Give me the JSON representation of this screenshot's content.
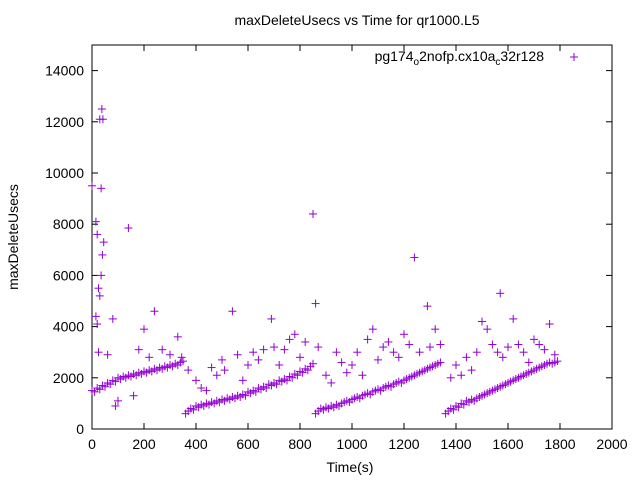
{
  "chart_data": {
    "type": "scatter",
    "title": "maxDeleteUsecs vs Time for qr1000.L5",
    "xlabel": "Time(s)",
    "ylabel": "maxDeleteUsecs",
    "xlim": [
      0,
      2000
    ],
    "ylim": [
      0,
      15000
    ],
    "x_ticks": [
      "0",
      "200",
      "400",
      "600",
      "800",
      "1000",
      "1200",
      "1400",
      "1600",
      "1800",
      "2000"
    ],
    "y_ticks": [
      "0",
      "2000",
      "4000",
      "6000",
      "8000",
      "10000",
      "12000",
      "14000"
    ],
    "legend": {
      "placement": "top-right",
      "label": "pg174_o2nofp.cx10a_c32r128"
    },
    "grid": false,
    "series": [
      {
        "name": "pg174_o2nofp.cx10a_c32r128",
        "color": "#9400d3",
        "marker": "plus",
        "points": [
          [
            0,
            1500
          ],
          [
            10,
            1450
          ],
          [
            20,
            1600
          ],
          [
            30,
            1550
          ],
          [
            40,
            1700
          ],
          [
            50,
            1650
          ],
          [
            60,
            1800
          ],
          [
            70,
            1750
          ],
          [
            80,
            1900
          ],
          [
            90,
            1850
          ],
          [
            100,
            2000
          ],
          [
            110,
            1950
          ],
          [
            120,
            2050
          ],
          [
            130,
            2000
          ],
          [
            140,
            2100
          ],
          [
            150,
            2050
          ],
          [
            160,
            2150
          ],
          [
            170,
            2100
          ],
          [
            180,
            2200
          ],
          [
            190,
            2150
          ],
          [
            200,
            2250
          ],
          [
            210,
            2200
          ],
          [
            220,
            2300
          ],
          [
            230,
            2250
          ],
          [
            240,
            2350
          ],
          [
            250,
            2300
          ],
          [
            260,
            2400
          ],
          [
            270,
            2350
          ],
          [
            280,
            2450
          ],
          [
            290,
            2400
          ],
          [
            300,
            2500
          ],
          [
            310,
            2450
          ],
          [
            320,
            2550
          ],
          [
            330,
            2500
          ],
          [
            340,
            2600
          ],
          [
            350,
            2650
          ],
          [
            360,
            600
          ],
          [
            370,
            700
          ],
          [
            380,
            800
          ],
          [
            390,
            750
          ],
          [
            400,
            900
          ],
          [
            410,
            850
          ],
          [
            420,
            950
          ],
          [
            430,
            900
          ],
          [
            440,
            1000
          ],
          [
            450,
            950
          ],
          [
            460,
            1050
          ],
          [
            470,
            1000
          ],
          [
            480,
            1100
          ],
          [
            490,
            1050
          ],
          [
            500,
            1150
          ],
          [
            510,
            1100
          ],
          [
            520,
            1200
          ],
          [
            530,
            1150
          ],
          [
            540,
            1250
          ],
          [
            550,
            1200
          ],
          [
            560,
            1300
          ],
          [
            570,
            1250
          ],
          [
            580,
            1350
          ],
          [
            590,
            1300
          ],
          [
            600,
            1450
          ],
          [
            610,
            1400
          ],
          [
            620,
            1500
          ],
          [
            630,
            1450
          ],
          [
            640,
            1600
          ],
          [
            650,
            1550
          ],
          [
            660,
            1650
          ],
          [
            670,
            1600
          ],
          [
            680,
            1750
          ],
          [
            690,
            1700
          ],
          [
            700,
            1800
          ],
          [
            710,
            1750
          ],
          [
            720,
            1900
          ],
          [
            730,
            1850
          ],
          [
            740,
            1950
          ],
          [
            750,
            1900
          ],
          [
            760,
            2050
          ],
          [
            770,
            2000
          ],
          [
            780,
            2150
          ],
          [
            790,
            2100
          ],
          [
            800,
            2250
          ],
          [
            810,
            2200
          ],
          [
            820,
            2350
          ],
          [
            830,
            2300
          ],
          [
            840,
            2450
          ],
          [
            850,
            2550
          ],
          [
            860,
            600
          ],
          [
            870,
            700
          ],
          [
            880,
            800
          ],
          [
            890,
            750
          ],
          [
            900,
            850
          ],
          [
            910,
            800
          ],
          [
            920,
            900
          ],
          [
            930,
            850
          ],
          [
            940,
            950
          ],
          [
            950,
            900
          ],
          [
            960,
            1000
          ],
          [
            970,
            1050
          ],
          [
            980,
            1100
          ],
          [
            990,
            1050
          ],
          [
            1000,
            1150
          ],
          [
            1010,
            1200
          ],
          [
            1020,
            1250
          ],
          [
            1030,
            1200
          ],
          [
            1040,
            1300
          ],
          [
            1050,
            1350
          ],
          [
            1060,
            1400
          ],
          [
            1070,
            1350
          ],
          [
            1080,
            1450
          ],
          [
            1090,
            1500
          ],
          [
            1100,
            1550
          ],
          [
            1110,
            1500
          ],
          [
            1120,
            1600
          ],
          [
            1130,
            1650
          ],
          [
            1140,
            1700
          ],
          [
            1150,
            1650
          ],
          [
            1160,
            1750
          ],
          [
            1170,
            1800
          ],
          [
            1180,
            1850
          ],
          [
            1190,
            1800
          ],
          [
            1200,
            1900
          ],
          [
            1210,
            1950
          ],
          [
            1220,
            2000
          ],
          [
            1230,
            2050
          ],
          [
            1240,
            2100
          ],
          [
            1250,
            2150
          ],
          [
            1260,
            2200
          ],
          [
            1270,
            2250
          ],
          [
            1280,
            2300
          ],
          [
            1290,
            2350
          ],
          [
            1300,
            2400
          ],
          [
            1310,
            2450
          ],
          [
            1320,
            2500
          ],
          [
            1330,
            2550
          ],
          [
            1340,
            2600
          ],
          [
            1360,
            600
          ],
          [
            1370,
            700
          ],
          [
            1380,
            800
          ],
          [
            1390,
            750
          ],
          [
            1400,
            900
          ],
          [
            1410,
            850
          ],
          [
            1420,
            1000
          ],
          [
            1430,
            950
          ],
          [
            1440,
            1100
          ],
          [
            1450,
            1050
          ],
          [
            1460,
            1150
          ],
          [
            1470,
            1100
          ],
          [
            1480,
            1200
          ],
          [
            1490,
            1250
          ],
          [
            1500,
            1300
          ],
          [
            1510,
            1350
          ],
          [
            1520,
            1400
          ],
          [
            1530,
            1450
          ],
          [
            1540,
            1500
          ],
          [
            1550,
            1550
          ],
          [
            1560,
            1600
          ],
          [
            1570,
            1650
          ],
          [
            1580,
            1700
          ],
          [
            1590,
            1750
          ],
          [
            1600,
            1800
          ],
          [
            1610,
            1850
          ],
          [
            1620,
            1900
          ],
          [
            1630,
            1950
          ],
          [
            1640,
            2000
          ],
          [
            1650,
            2050
          ],
          [
            1660,
            2100
          ],
          [
            1670,
            2150
          ],
          [
            1680,
            2200
          ],
          [
            1690,
            2250
          ],
          [
            1700,
            2300
          ],
          [
            1710,
            2350
          ],
          [
            1720,
            2400
          ],
          [
            1730,
            2450
          ],
          [
            1740,
            2500
          ],
          [
            1750,
            2550
          ],
          [
            1760,
            2600
          ],
          [
            1770,
            2550
          ],
          [
            1780,
            2600
          ],
          [
            1790,
            2650
          ],
          [
            0,
            9500
          ],
          [
            15,
            8100
          ],
          [
            20,
            7600
          ],
          [
            25,
            5500
          ],
          [
            30,
            5200
          ],
          [
            35,
            6000
          ],
          [
            40,
            6800
          ],
          [
            45,
            7300
          ],
          [
            30,
            12100
          ],
          [
            38,
            12500
          ],
          [
            42,
            12100
          ],
          [
            35,
            9400
          ],
          [
            20,
            4100
          ],
          [
            15,
            4400
          ],
          [
            25,
            3000
          ],
          [
            60,
            2900
          ],
          [
            80,
            4300
          ],
          [
            90,
            900
          ],
          [
            100,
            1100
          ],
          [
            140,
            7850
          ],
          [
            160,
            1300
          ],
          [
            180,
            3100
          ],
          [
            200,
            3900
          ],
          [
            220,
            2800
          ],
          [
            240,
            4600
          ],
          [
            270,
            3100
          ],
          [
            300,
            2900
          ],
          [
            330,
            3600
          ],
          [
            345,
            2800
          ],
          [
            370,
            2300
          ],
          [
            400,
            1900
          ],
          [
            420,
            1600
          ],
          [
            440,
            1500
          ],
          [
            460,
            2400
          ],
          [
            480,
            2100
          ],
          [
            500,
            2700
          ],
          [
            510,
            2300
          ],
          [
            540,
            4600
          ],
          [
            560,
            2900
          ],
          [
            580,
            1900
          ],
          [
            600,
            2500
          ],
          [
            620,
            3000
          ],
          [
            640,
            2700
          ],
          [
            660,
            3100
          ],
          [
            690,
            4300
          ],
          [
            700,
            3200
          ],
          [
            720,
            2500
          ],
          [
            740,
            3100
          ],
          [
            760,
            3500
          ],
          [
            780,
            3700
          ],
          [
            800,
            2800
          ],
          [
            820,
            3400
          ],
          [
            850,
            8400
          ],
          [
            860,
            4900
          ],
          [
            870,
            3200
          ],
          [
            900,
            2100
          ],
          [
            920,
            1800
          ],
          [
            940,
            3000
          ],
          [
            960,
            2600
          ],
          [
            980,
            2200
          ],
          [
            1000,
            2500
          ],
          [
            1020,
            3000
          ],
          [
            1040,
            2100
          ],
          [
            1060,
            3500
          ],
          [
            1080,
            3900
          ],
          [
            1100,
            2700
          ],
          [
            1120,
            3200
          ],
          [
            1140,
            3400
          ],
          [
            1160,
            3000
          ],
          [
            1180,
            2800
          ],
          [
            1200,
            3700
          ],
          [
            1220,
            3300
          ],
          [
            1240,
            6700
          ],
          [
            1260,
            3000
          ],
          [
            1290,
            4800
          ],
          [
            1300,
            3200
          ],
          [
            1320,
            3900
          ],
          [
            1340,
            3300
          ],
          [
            1380,
            2000
          ],
          [
            1400,
            2500
          ],
          [
            1420,
            2100
          ],
          [
            1440,
            2800
          ],
          [
            1460,
            2300
          ],
          [
            1480,
            3000
          ],
          [
            1500,
            4200
          ],
          [
            1520,
            3900
          ],
          [
            1540,
            3300
          ],
          [
            1560,
            3000
          ],
          [
            1570,
            5300
          ],
          [
            1580,
            2800
          ],
          [
            1600,
            3200
          ],
          [
            1620,
            4300
          ],
          [
            1640,
            3300
          ],
          [
            1660,
            3000
          ],
          [
            1680,
            2600
          ],
          [
            1700,
            3500
          ],
          [
            1720,
            3300
          ],
          [
            1740,
            3100
          ],
          [
            1760,
            4100
          ],
          [
            1780,
            2900
          ]
        ]
      }
    ]
  }
}
